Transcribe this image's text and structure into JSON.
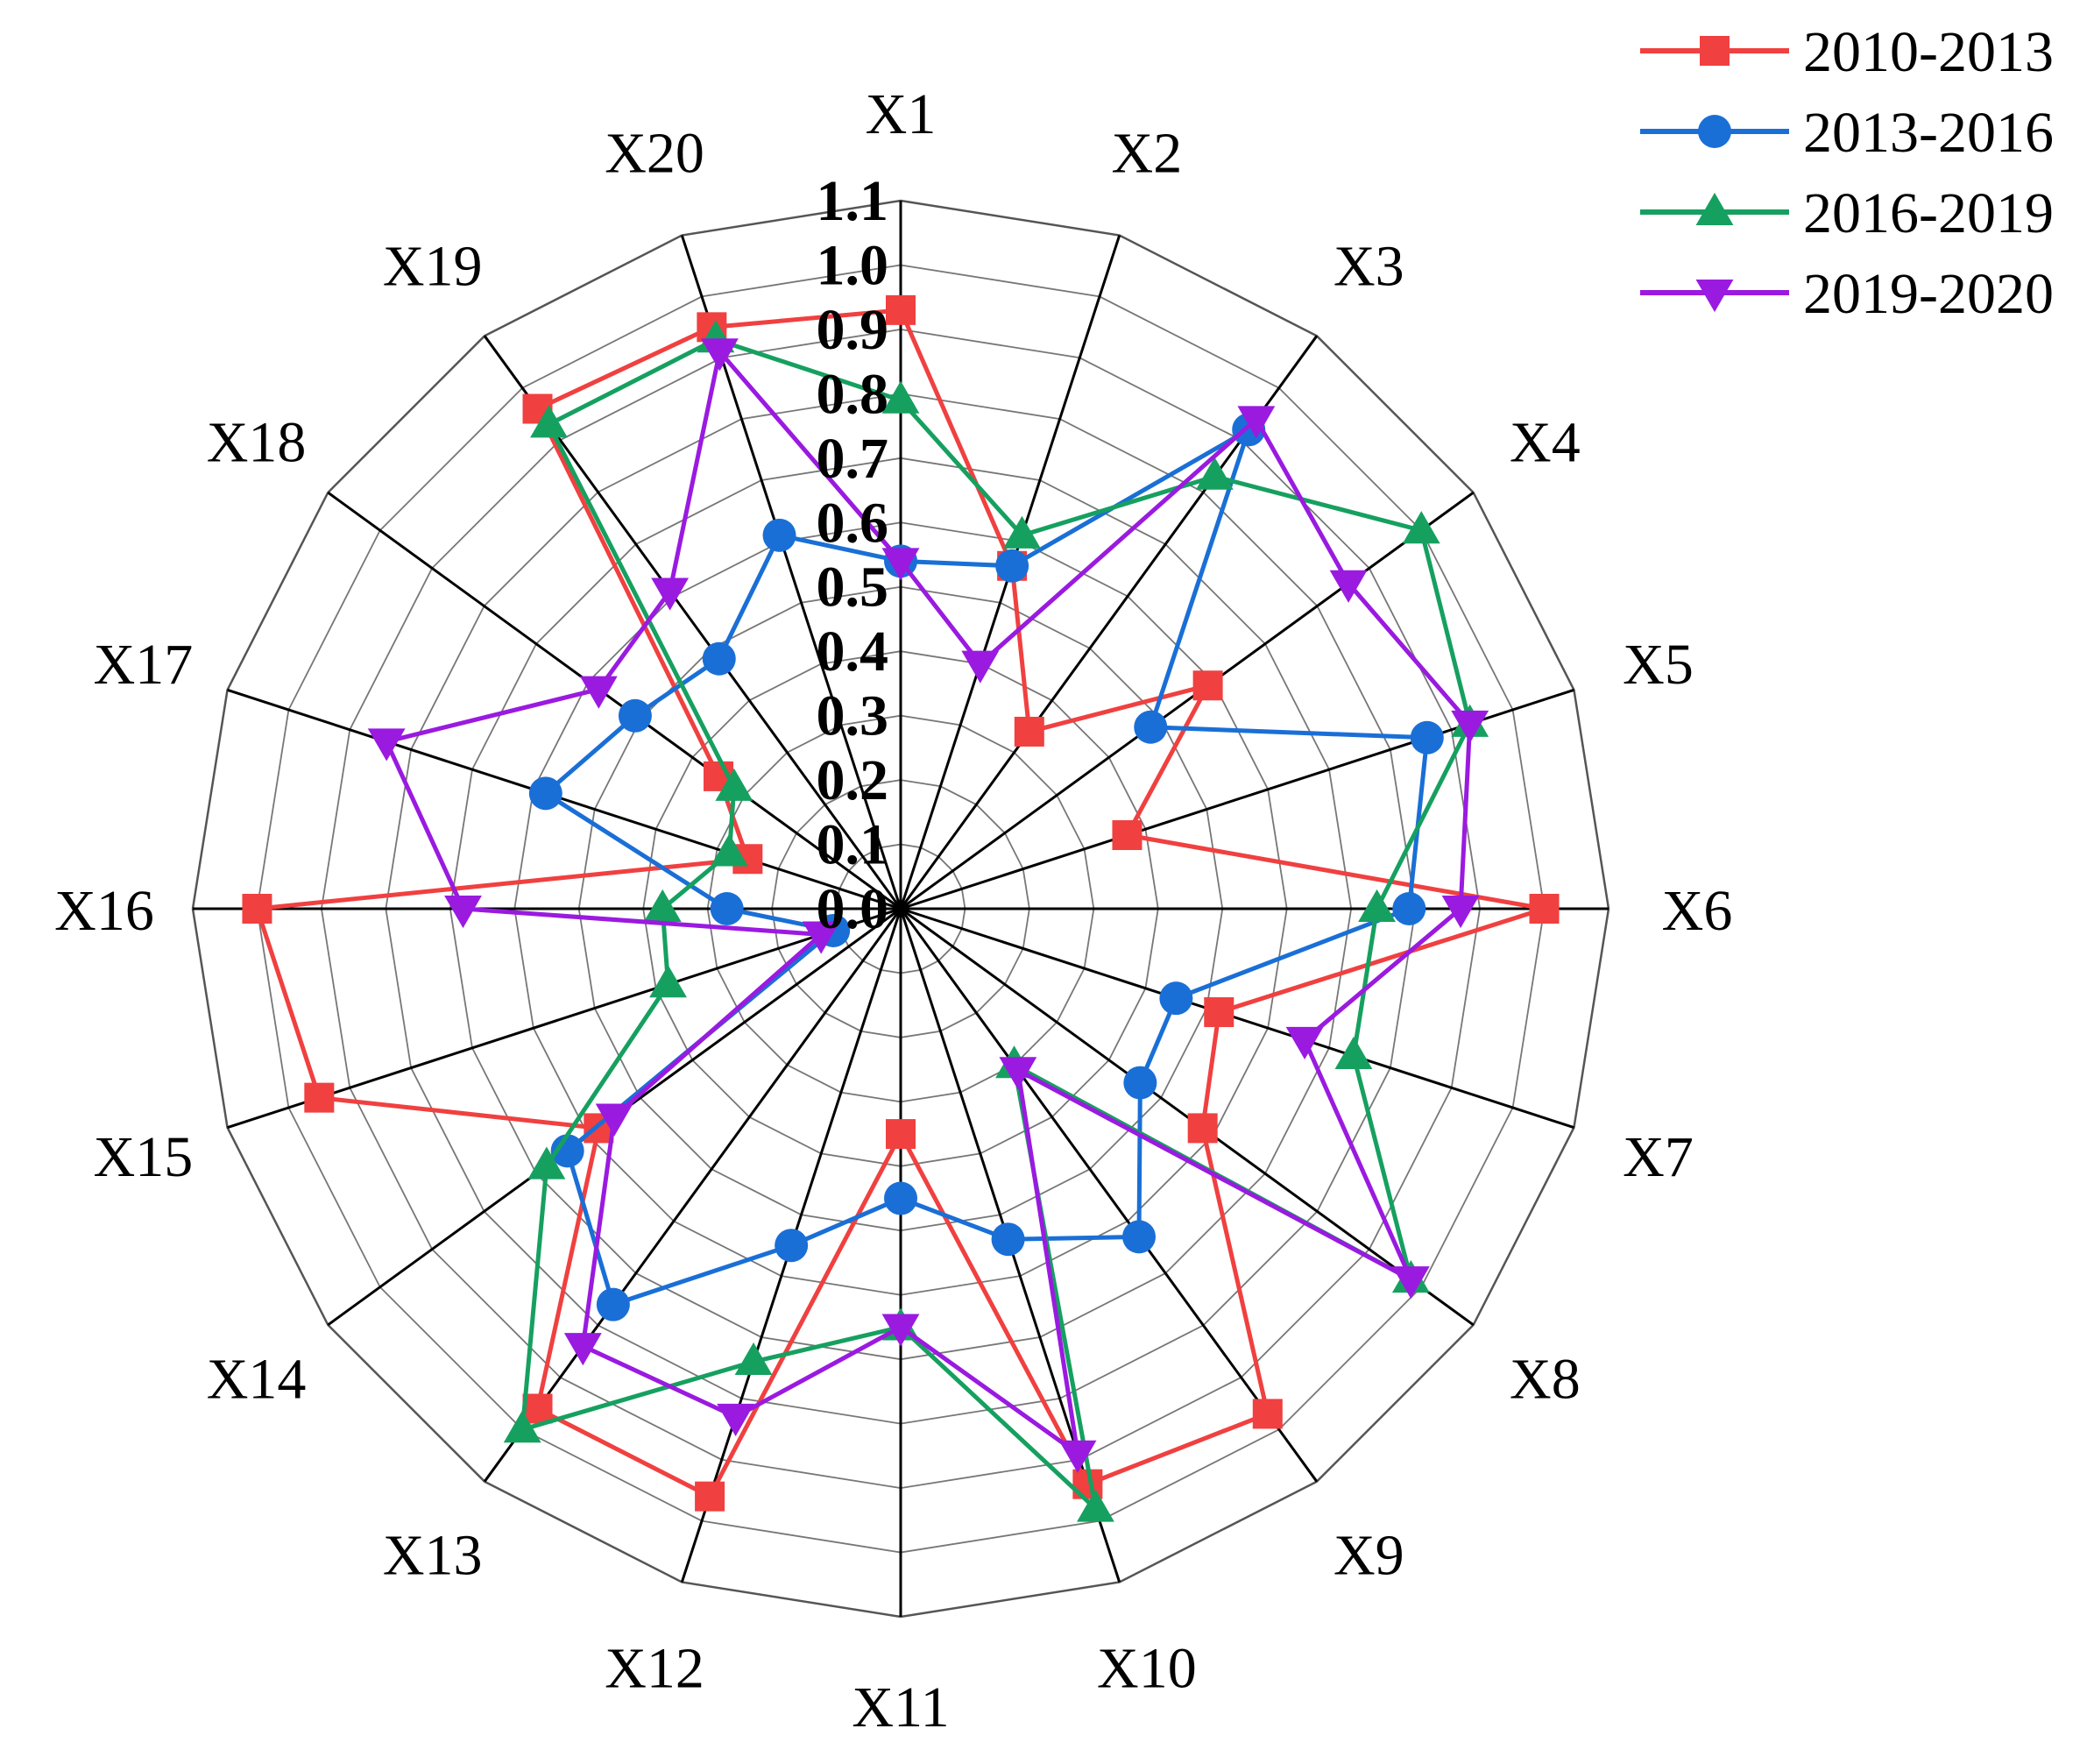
{
  "chart_data": {
    "type": "radar",
    "categories": [
      "X1",
      "X2",
      "X3",
      "X4",
      "X5",
      "X6",
      "X7",
      "X8",
      "X9",
      "X10",
      "X11",
      "X12",
      "X13",
      "X14",
      "X15",
      "X16",
      "X17",
      "X18",
      "X19",
      "X20"
    ],
    "rlim": [
      0,
      1.1
    ],
    "ticks": [
      "0.0",
      "0.1",
      "0.2",
      "0.3",
      "0.4",
      "0.5",
      "0.6",
      "0.7",
      "0.8",
      "0.9",
      "1.0",
      "1.1"
    ],
    "grid": true,
    "legend_position": "top-right",
    "series": [
      {
        "name": "2010-2013",
        "color": "#f04040",
        "marker": "square",
        "values": [
          0.93,
          0.56,
          0.34,
          0.59,
          0.37,
          1.0,
          0.52,
          0.58,
          0.97,
          0.94,
          0.35,
          0.96,
          0.96,
          0.58,
          0.95,
          1.0,
          0.25,
          0.35,
          0.96,
          0.95
        ]
      },
      {
        "name": "2013-2016",
        "color": "#1a6fd6",
        "marker": "circle",
        "values": [
          0.54,
          0.56,
          0.92,
          0.48,
          0.86,
          0.79,
          0.45,
          0.46,
          0.63,
          0.54,
          0.45,
          0.55,
          0.76,
          0.64,
          0.11,
          0.27,
          0.58,
          0.51,
          0.48,
          0.61
        ]
      },
      {
        "name": "2016-2019",
        "color": "#16a060",
        "marker": "triangle-up",
        "values": [
          0.79,
          0.61,
          0.83,
          1.0,
          0.93,
          0.74,
          0.74,
          0.98,
          0.3,
          0.98,
          0.65,
          0.74,
          1.0,
          0.68,
          0.38,
          0.37,
          0.28,
          0.32,
          0.93,
          0.93
        ]
      },
      {
        "name": "2019-2020",
        "color": "#9a1ae0",
        "marker": "triangle-down",
        "values": [
          0.54,
          0.4,
          0.94,
          0.86,
          0.93,
          0.87,
          0.66,
          0.98,
          0.31,
          0.89,
          0.65,
          0.83,
          0.84,
          0.55,
          0.13,
          0.68,
          0.84,
          0.58,
          0.61,
          0.91
        ]
      }
    ]
  }
}
